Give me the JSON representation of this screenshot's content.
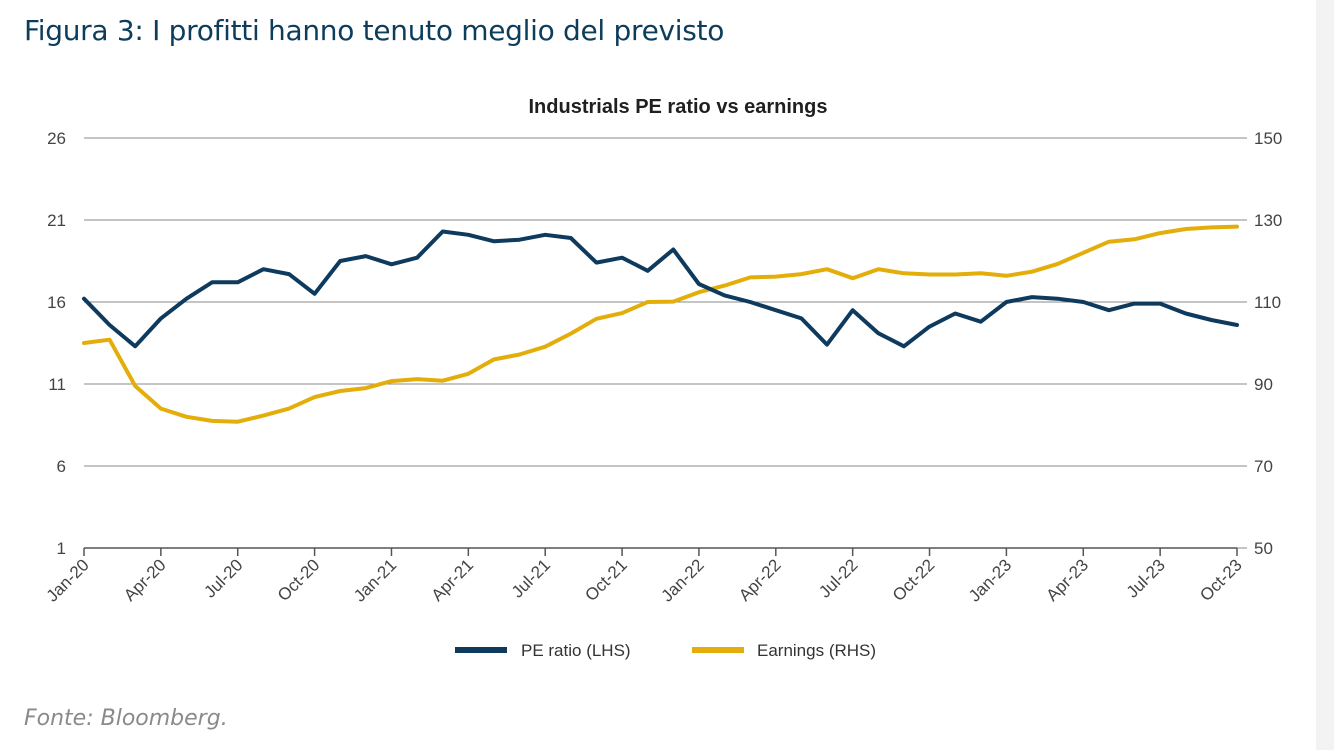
{
  "page": {
    "heading": "Figura 3: I profitti hanno tenuto meglio del previsto",
    "source": "Fonte: Bloomberg."
  },
  "colors": {
    "pe": "#0e3a5e",
    "earnings": "#e3ad0a",
    "grid": "#8a8a8a",
    "axis_text": "#444444",
    "heading": "#0e3d5c"
  },
  "chart_data": {
    "type": "line",
    "title": "Industrials PE ratio vs earnings",
    "xlabel": "",
    "ylabel_left": "",
    "ylabel_right": "",
    "x_ticks": [
      "Jan-20",
      "Apr-20",
      "Jul-20",
      "Oct-20",
      "Jan-21",
      "Apr-21",
      "Jul-21",
      "Oct-21",
      "Jan-22",
      "Apr-22",
      "Jul-22",
      "Oct-22",
      "Jan-23",
      "Apr-23",
      "Jul-23",
      "Oct-23"
    ],
    "y_left": {
      "ylim": [
        1,
        26
      ],
      "ticks": [
        1,
        6,
        11,
        16,
        21,
        26
      ]
    },
    "y_right": {
      "ylim": [
        50,
        150
      ],
      "ticks": [
        50,
        70,
        90,
        110,
        130,
        150
      ]
    },
    "grid": true,
    "legend_position": "bottom-center",
    "series": [
      {
        "name": "PE ratio (LHS)",
        "axis": "left",
        "values": [
          16.2,
          14.6,
          13.3,
          15.0,
          16.2,
          17.2,
          17.2,
          18.0,
          17.7,
          16.5,
          18.5,
          18.8,
          18.3,
          18.7,
          20.3,
          20.1,
          19.7,
          19.8,
          20.1,
          19.9,
          18.4,
          18.7,
          17.9,
          19.2,
          17.1,
          16.4,
          16.0,
          15.5,
          15.0,
          13.4,
          15.5,
          14.1,
          13.3,
          14.5,
          15.3,
          14.8,
          16.0,
          16.3,
          16.2,
          16.0,
          15.5,
          15.9,
          15.9,
          15.3,
          14.9,
          14.6
        ]
      },
      {
        "name": "Earnings (RHS)",
        "axis": "right",
        "values": [
          100,
          100.8,
          89.5,
          84,
          82,
          81,
          80.8,
          82.3,
          84,
          86.8,
          88.3,
          89,
          90.7,
          91.2,
          90.8,
          92.5,
          96,
          97.2,
          99.1,
          102.3,
          105.9,
          107.3,
          110,
          110.1,
          112.4,
          114,
          116,
          116.2,
          116.8,
          118,
          115.8,
          118,
          117,
          116.7,
          116.7,
          117,
          116.4,
          117.4,
          119.3,
          122,
          124.7,
          125.3,
          126.8,
          127.8,
          128.2,
          128.4
        ]
      }
    ]
  }
}
